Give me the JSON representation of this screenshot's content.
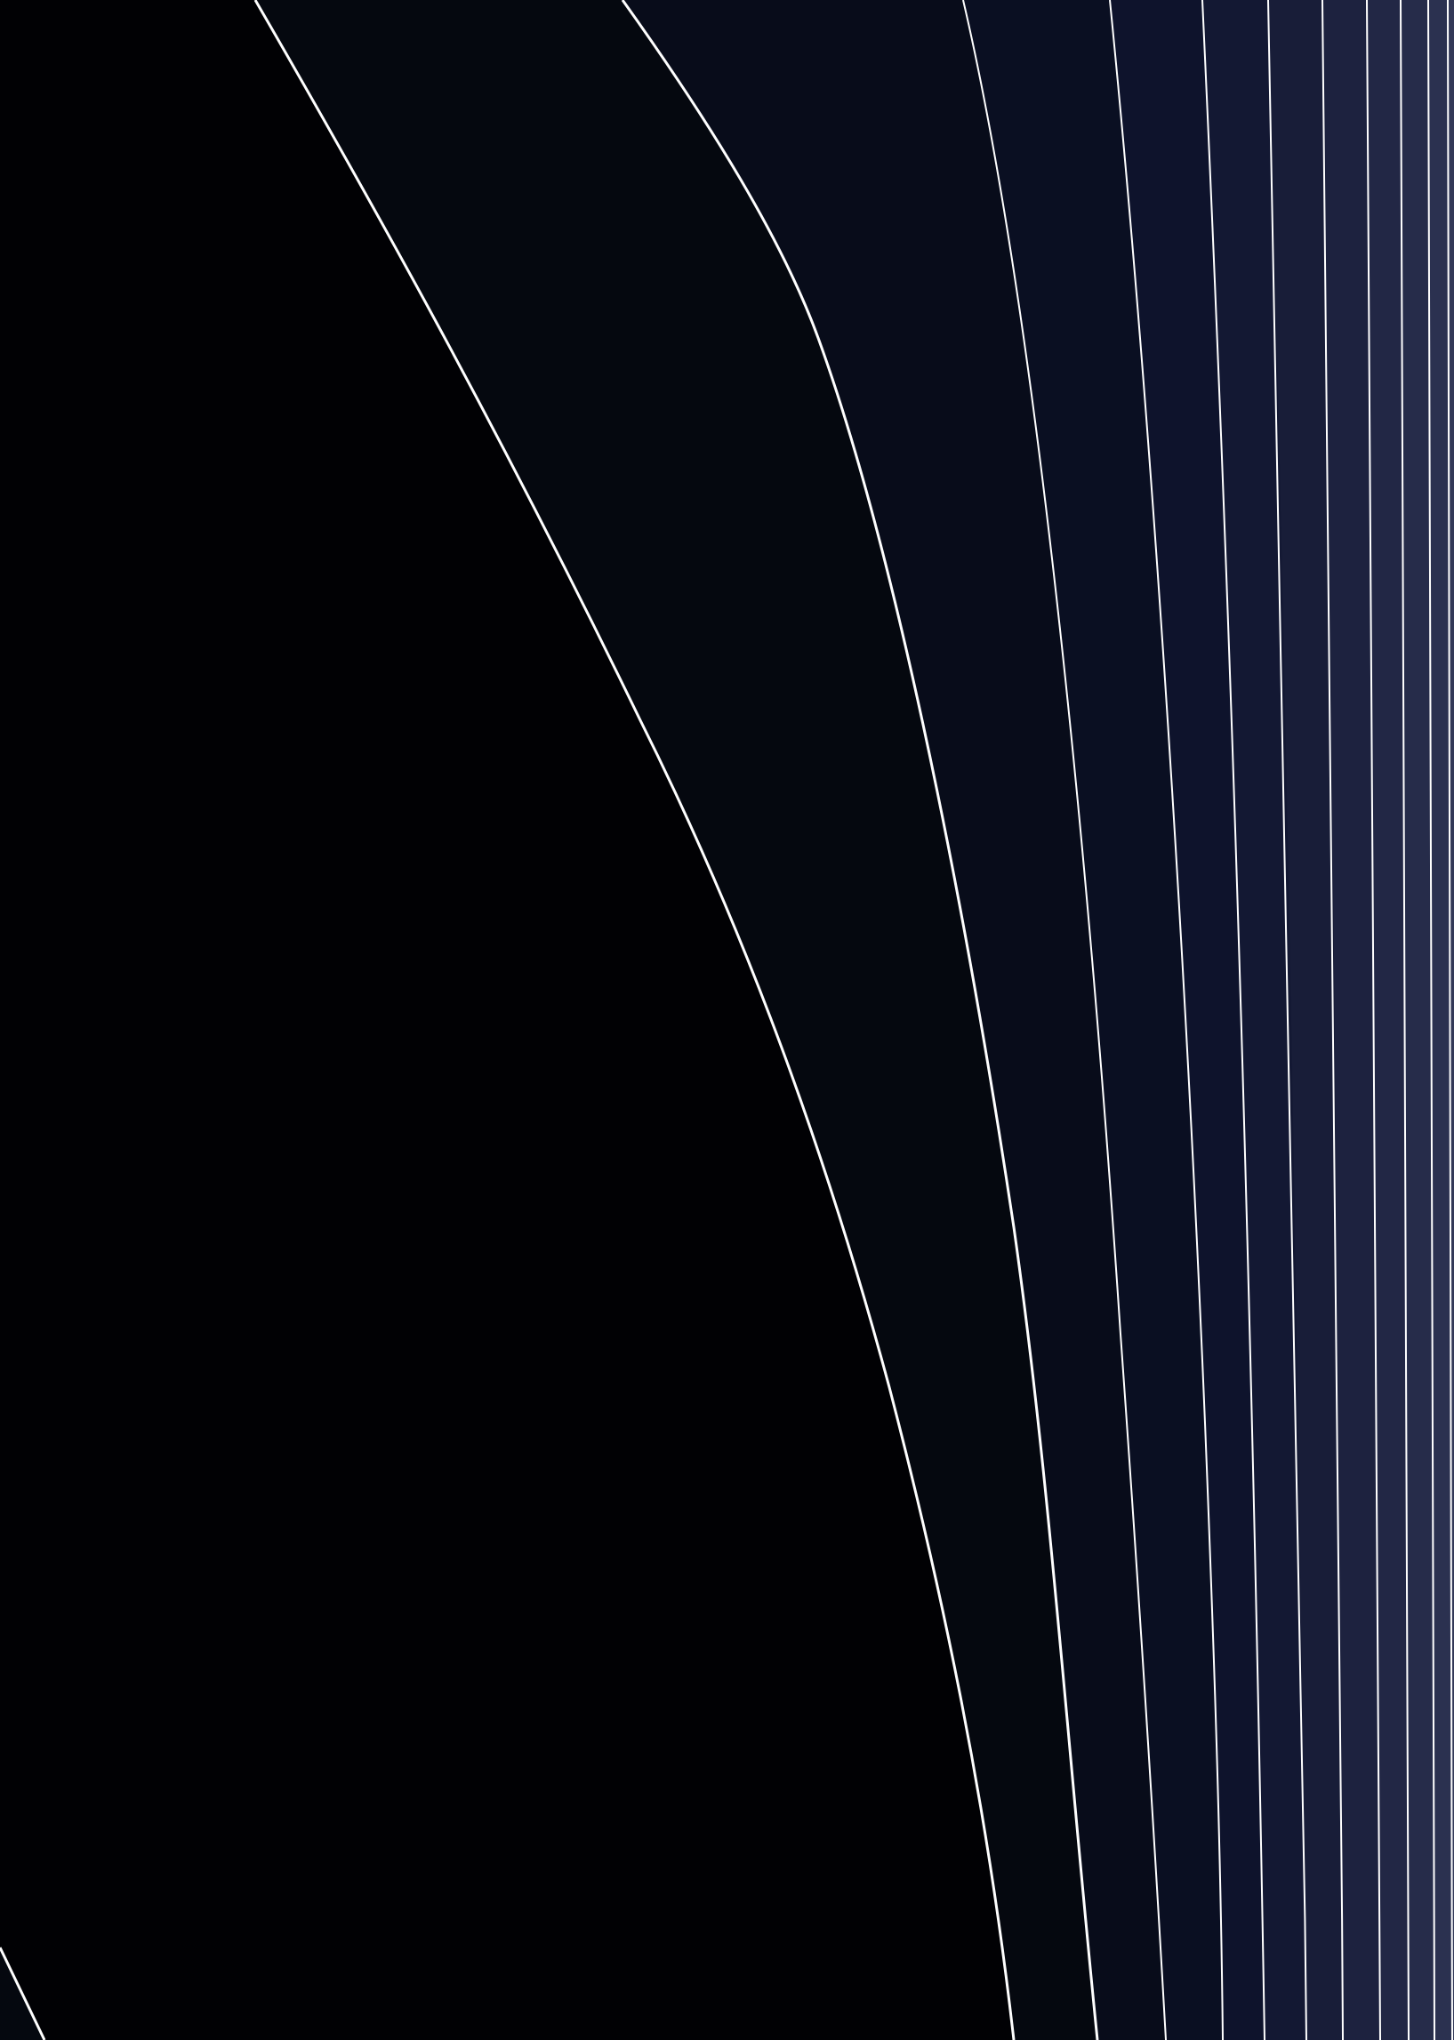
{
  "diagram": {
    "type": "filled-contour",
    "levels": 12,
    "colors": {
      "background": "#000000",
      "contour_line": "#ffffff",
      "bands": [
        "#010104",
        "#05080f",
        "#080c1a",
        "#0a0f22",
        "#0e132c",
        "#131833",
        "#181d38",
        "#1d223f",
        "#222745",
        "#262c4a",
        "#2b3150",
        "#323857"
      ]
    }
  }
}
